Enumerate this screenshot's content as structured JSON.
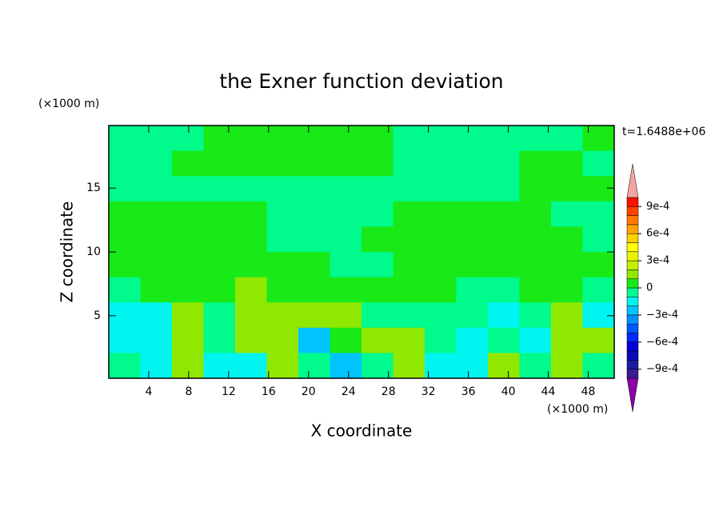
{
  "chart_data": {
    "type": "contour",
    "title": "the Exner function deviation",
    "x_label": "X coordinate",
    "y_label": "Z coordinate",
    "x_unit": "(×1000 m)",
    "y_unit": "(×1000 m)",
    "annotation": "t=1.6488e+06",
    "xlim": [
      0,
      50.6
    ],
    "ylim": [
      0.1,
      19.9
    ],
    "xticks": [
      4,
      8,
      12,
      16,
      20,
      24,
      28,
      32,
      36,
      40,
      44,
      48
    ],
    "yticks": [
      5,
      10,
      15
    ],
    "z": [
      [
        -5e-05,
        -5e-05,
        -5e-05,
        5e-05,
        5e-05,
        5e-05,
        5e-05,
        5e-05,
        5e-05,
        -5e-05,
        -5e-05,
        -5e-05,
        -5e-05,
        -5e-05,
        -5e-05,
        5e-05
      ],
      [
        -5e-05,
        -5e-05,
        5e-05,
        5e-05,
        5e-05,
        5e-05,
        5e-05,
        5e-05,
        5e-05,
        -5e-05,
        -5e-05,
        -5e-05,
        -5e-05,
        5e-05,
        5e-05,
        -5e-05
      ],
      [
        -5e-05,
        -5e-05,
        -5e-05,
        -5e-05,
        -5e-05,
        -5e-05,
        -5e-05,
        -5e-05,
        -5e-05,
        -5e-05,
        -5e-05,
        -5e-05,
        -5e-05,
        5e-05,
        5e-05,
        5e-05
      ],
      [
        5e-05,
        5e-05,
        5e-05,
        5e-05,
        5e-05,
        -5e-05,
        -5e-05,
        -5e-05,
        -5e-05,
        5e-05,
        5e-05,
        5e-05,
        5e-05,
        5e-05,
        -5e-05,
        -5e-05
      ],
      [
        5e-05,
        5e-05,
        5e-05,
        5e-05,
        5e-05,
        -5e-05,
        -5e-05,
        -5e-05,
        5e-05,
        5e-05,
        5e-05,
        5e-05,
        5e-05,
        5e-05,
        5e-05,
        -5e-05
      ],
      [
        5e-05,
        5e-05,
        5e-05,
        5e-05,
        5e-05,
        5e-05,
        5e-05,
        -5e-05,
        -5e-05,
        5e-05,
        5e-05,
        5e-05,
        5e-05,
        5e-05,
        5e-05,
        5e-05
      ],
      [
        -5e-05,
        5e-05,
        5e-05,
        5e-05,
        0.00015,
        5e-05,
        5e-05,
        5e-05,
        5e-05,
        5e-05,
        5e-05,
        -5e-05,
        -5e-05,
        5e-05,
        5e-05,
        -5e-05
      ],
      [
        -0.00015,
        -0.00015,
        0.00015,
        -5e-05,
        0.00015,
        0.00015,
        0.00015,
        0.00015,
        -5e-05,
        -5e-05,
        -5e-05,
        -5e-05,
        -0.00015,
        -5e-05,
        0.00015,
        -0.00015
      ],
      [
        -0.00015,
        -0.00015,
        0.00015,
        -5e-05,
        0.00015,
        0.00015,
        -0.00025,
        5e-05,
        0.00015,
        0.00015,
        -5e-05,
        -0.00015,
        -5e-05,
        -0.00015,
        0.00015,
        0.00015
      ],
      [
        -5e-05,
        -0.00015,
        0.00015,
        -0.00015,
        -0.00015,
        0.00015,
        -5e-05,
        -0.00025,
        -5e-05,
        0.00015,
        -0.00015,
        -0.00015,
        0.00015,
        -5e-05,
        0.00015,
        -5e-05
      ]
    ],
    "levels": [
      -0.001,
      -0.0009,
      -0.0008,
      -0.0007,
      -0.0006,
      -0.0005,
      -0.0004,
      -0.0003,
      -0.0002,
      -0.0001,
      0,
      0.0001,
      0.0002,
      0.0003,
      0.0004,
      0.0005,
      0.0006,
      0.0007,
      0.0008,
      0.0009,
      0.001
    ],
    "colors": [
      "#3c1a94",
      "#1c1aa0",
      "#0a0ab8",
      "#0000d8",
      "#0028ff",
      "#0058ff",
      "#0090ff",
      "#00c4ff",
      "#00f4f0",
      "#00fa8c",
      "#18ea18",
      "#90e800",
      "#c4f000",
      "#e8f400",
      "#ffff00",
      "#ffd200",
      "#ffa400",
      "#ff7800",
      "#ff4400",
      "#ff1000"
    ],
    "extend_colors": [
      "#8c00a8",
      "#f4a4a4"
    ],
    "colorbar_ticks": [
      {
        "value": 0.0009,
        "label": "9e-4"
      },
      {
        "value": 0.0006,
        "label": "6e-4"
      },
      {
        "value": 0.0003,
        "label": "3e-4"
      },
      0,
      {
        "value": -0.0003,
        "label": "−3e-4"
      },
      {
        "value": -0.0006,
        "label": "−6e-4"
      },
      {
        "value": -0.0009,
        "label": "−9e-4"
      }
    ]
  }
}
